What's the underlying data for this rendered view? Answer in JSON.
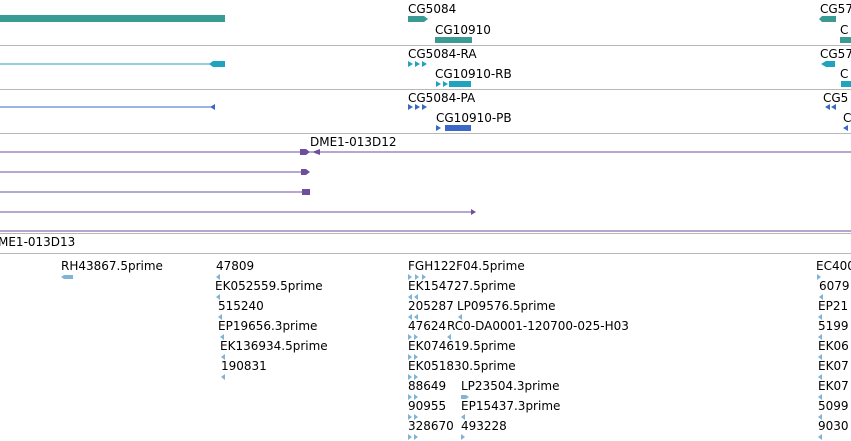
{
  "colors": {
    "gene": "#3a9a94",
    "mrna": "#1fa3bf",
    "protein": "#3a68c6",
    "clone": "#6e4f9e",
    "est": "#7fb3d8",
    "separator": "#b8b8b8",
    "text": "#000000"
  },
  "tracks": {
    "genes": {
      "labels": [
        {
          "id": "cg5084",
          "text": "CG5084"
        },
        {
          "id": "cg10910",
          "text": "CG10910"
        },
        {
          "id": "cg57",
          "text": "CG57"
        },
        {
          "id": "c",
          "text": "C"
        }
      ]
    },
    "transcripts": {
      "labels": [
        {
          "id": "cg5084-ra",
          "text": "CG5084-RA"
        },
        {
          "id": "cg10910-rb",
          "text": "CG10910-RB"
        },
        {
          "id": "cg57",
          "text": "CG57"
        },
        {
          "id": "c",
          "text": "C"
        }
      ]
    },
    "proteins": {
      "labels": [
        {
          "id": "cg5084-pa",
          "text": "CG5084-PA"
        },
        {
          "id": "cg10910-pb",
          "text": "CG10910-PB"
        },
        {
          "id": "cg5",
          "text": "CG5"
        },
        {
          "id": "c",
          "text": "C"
        }
      ]
    },
    "clones": {
      "labels": [
        {
          "id": "dme1-013d12",
          "text": "DME1-013D12"
        }
      ]
    },
    "clones2": {
      "labels": [
        {
          "id": "dme1-013d13",
          "text": "ME1-013D13"
        }
      ]
    },
    "ests": {
      "labels": [
        {
          "id": "rh43867",
          "text": "RH43867.5prime"
        },
        {
          "id": "n47809",
          "text": "47809"
        },
        {
          "id": "ek052559",
          "text": "EK052559.5prime"
        },
        {
          "id": "n515240",
          "text": "515240"
        },
        {
          "id": "ep19656",
          "text": "EP19656.3prime"
        },
        {
          "id": "ek136934",
          "text": "EK136934.5prime"
        },
        {
          "id": "n190831",
          "text": "190831"
        },
        {
          "id": "fgh122f04",
          "text": "FGH122F04.5prime"
        },
        {
          "id": "ek154727",
          "text": "EK154727.5prime"
        },
        {
          "id": "n205287",
          "text": "205287"
        },
        {
          "id": "lp09576",
          "text": "LP09576.5prime"
        },
        {
          "id": "n47624",
          "text": "47624"
        },
        {
          "id": "rc0-da0001",
          "text": "RC0-DA0001-120700-025-H03"
        },
        {
          "id": "ek074619",
          "text": "EK074619.5prime"
        },
        {
          "id": "ek051830",
          "text": "EK051830.5prime"
        },
        {
          "id": "n88649",
          "text": "88649"
        },
        {
          "id": "lp23504",
          "text": "LP23504.3prime"
        },
        {
          "id": "n90955",
          "text": "90955"
        },
        {
          "id": "ep15437",
          "text": "EP15437.3prime"
        },
        {
          "id": "n328670",
          "text": "328670"
        },
        {
          "id": "n493228",
          "text": "493228"
        },
        {
          "id": "ec400",
          "text": "EC400"
        },
        {
          "id": "n6079",
          "text": "6079"
        },
        {
          "id": "ep21",
          "text": "EP21"
        },
        {
          "id": "n5199",
          "text": "5199"
        },
        {
          "id": "ek06",
          "text": "EK06"
        },
        {
          "id": "ek07",
          "text": "EK07"
        },
        {
          "id": "ek07b",
          "text": "EK07"
        },
        {
          "id": "n5099",
          "text": "5099"
        },
        {
          "id": "n9030",
          "text": "9030"
        }
      ]
    }
  }
}
